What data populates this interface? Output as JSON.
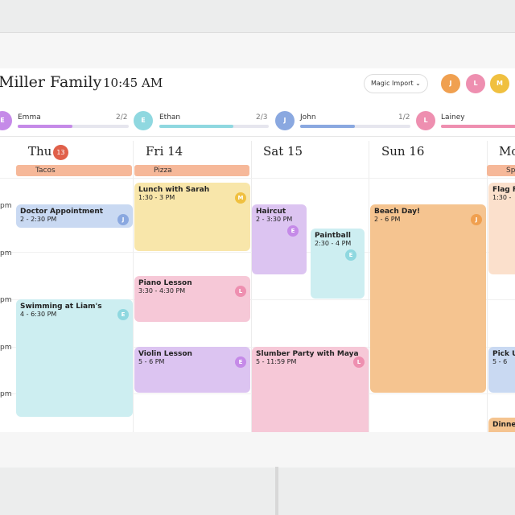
{
  "header": {
    "title": "Miller Family",
    "time": "10:45 AM",
    "button": "Magic Import",
    "avatars": [
      "J",
      "L",
      "M"
    ]
  },
  "members": [
    {
      "initial": "E",
      "name": "Emma",
      "progress": "2/2"
    },
    {
      "initial": "E",
      "name": "Ethan",
      "progress": "2/3"
    },
    {
      "initial": "J",
      "name": "John",
      "progress": "1/2"
    },
    {
      "initial": "L",
      "name": "Lainey"
    }
  ],
  "days": [
    {
      "label": "Thu",
      "badge": "13"
    },
    {
      "label": "Fri 14"
    },
    {
      "label": "Sat 15"
    },
    {
      "label": "Sun 16"
    },
    {
      "label": "Mo"
    }
  ],
  "all_day": [
    "Tacos",
    "Pizza",
    "Sp"
  ],
  "time_labels": [
    "pm",
    "pm",
    "pm",
    "pm",
    "pm"
  ],
  "events": [
    {
      "title": "Doctor Appointment",
      "time": "2 - 2:30 PM",
      "avatar": "J"
    },
    {
      "title": "Swimming at Liam's",
      "time": "4 - 6:30 PM",
      "avatar": "E"
    },
    {
      "title": "Lunch with Sarah",
      "time": "1:30 - 3 PM",
      "avatar": "M"
    },
    {
      "title": "Piano Lesson",
      "time": "3:30 - 4:30 PM",
      "avatar": "L"
    },
    {
      "title": "Violin Lesson",
      "time": "5 - 6 PM",
      "avatar": "E"
    },
    {
      "title": "Haircut",
      "time": "2 - 3:30 PM",
      "avatar": "E"
    },
    {
      "title": "Paintball",
      "time": "2:30 - 4 PM",
      "avatar": "E"
    },
    {
      "title": "Slumber Party with Maya",
      "time": "5 - 11:59 PM",
      "avatar": "L"
    },
    {
      "title": "Beach Day!",
      "time": "2 - 6 PM",
      "avatar": "J"
    },
    {
      "title": "Flag F",
      "time": "1:30 -"
    },
    {
      "title": "Pick U",
      "time": "5 - 6"
    },
    {
      "title": "Dinne"
    }
  ]
}
